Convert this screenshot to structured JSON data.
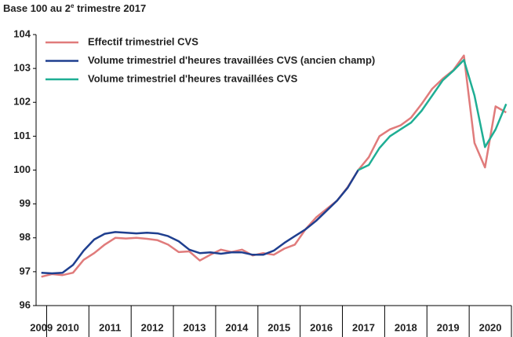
{
  "chart_data": {
    "type": "line",
    "title": {
      "before": "Base 100 au 2",
      "sup": "e",
      "after": " trimestre 2017"
    },
    "x": [
      2009.875,
      2010.125,
      2010.375,
      2010.625,
      2010.875,
      2011.125,
      2011.375,
      2011.625,
      2011.875,
      2012.125,
      2012.375,
      2012.625,
      2012.875,
      2013.125,
      2013.375,
      2013.625,
      2013.875,
      2014.125,
      2014.375,
      2014.625,
      2014.875,
      2015.125,
      2015.375,
      2015.625,
      2015.875,
      2016.125,
      2016.375,
      2016.625,
      2016.875,
      2017.125,
      2017.375,
      2017.625,
      2017.875,
      2018.125,
      2018.375,
      2018.625,
      2018.875,
      2019.125,
      2019.375,
      2019.625,
      2019.875,
      2020.125,
      2020.375,
      2020.625,
      2020.875
    ],
    "series": [
      {
        "name": "Effectif trimestriel CVS",
        "color": "#e07b7b",
        "values": [
          96.85,
          96.93,
          96.9,
          96.97,
          97.35,
          97.55,
          97.8,
          98.0,
          97.98,
          98.0,
          97.97,
          97.93,
          97.8,
          97.58,
          97.6,
          97.33,
          97.5,
          97.65,
          97.58,
          97.65,
          97.48,
          97.55,
          97.5,
          97.68,
          97.8,
          98.25,
          98.6,
          98.85,
          99.1,
          99.5,
          100.0,
          100.38,
          101.0,
          101.2,
          101.32,
          101.55,
          101.95,
          102.4,
          102.7,
          102.95,
          103.38,
          100.8,
          100.08,
          101.88,
          101.7
        ]
      },
      {
        "name": "Volume trimestriel d'heures travaillées CVS (ancien champ)",
        "color": "#1f3f8f",
        "values": [
          96.97,
          96.95,
          96.97,
          97.2,
          97.62,
          97.95,
          98.12,
          98.17,
          98.15,
          98.13,
          98.15,
          98.13,
          98.05,
          97.9,
          97.65,
          97.55,
          97.57,
          97.53,
          97.57,
          97.57,
          97.5,
          97.5,
          97.62,
          97.85,
          98.05,
          98.25,
          98.5,
          98.8,
          99.1,
          99.48,
          100.0,
          null,
          null,
          null,
          null,
          null,
          null,
          null,
          null,
          null,
          null,
          null,
          null,
          null,
          null
        ]
      },
      {
        "name": "Volume trimestriel d'heures travaillées CVS",
        "color": "#1fae94",
        "values": [
          null,
          null,
          null,
          null,
          null,
          null,
          null,
          null,
          null,
          null,
          null,
          null,
          null,
          null,
          null,
          null,
          null,
          null,
          null,
          null,
          null,
          null,
          null,
          null,
          null,
          null,
          null,
          null,
          null,
          null,
          100.0,
          100.15,
          100.65,
          101.0,
          101.2,
          101.4,
          101.75,
          102.2,
          102.65,
          102.93,
          103.25,
          102.2,
          100.68,
          101.2,
          101.95
        ]
      }
    ],
    "xlim": [
      2009.75,
      2021
    ],
    "xticks": [
      {
        "value": 2009.875,
        "label": "2009"
      },
      {
        "value": 2010.5,
        "label": "2010"
      },
      {
        "value": 2011.5,
        "label": "2011"
      },
      {
        "value": 2012.5,
        "label": "2012"
      },
      {
        "value": 2013.5,
        "label": "2013"
      },
      {
        "value": 2014.5,
        "label": "2014"
      },
      {
        "value": 2015.5,
        "label": "2015"
      },
      {
        "value": 2016.5,
        "label": "2016"
      },
      {
        "value": 2017.5,
        "label": "2017"
      },
      {
        "value": 2018.5,
        "label": "2018"
      },
      {
        "value": 2019.5,
        "label": "2019"
      },
      {
        "value": 2020.5,
        "label": "2020"
      }
    ],
    "ylim": [
      96,
      104
    ],
    "yticks": [
      96,
      97,
      98,
      99,
      100,
      101,
      102,
      103,
      104
    ],
    "grid": false
  }
}
